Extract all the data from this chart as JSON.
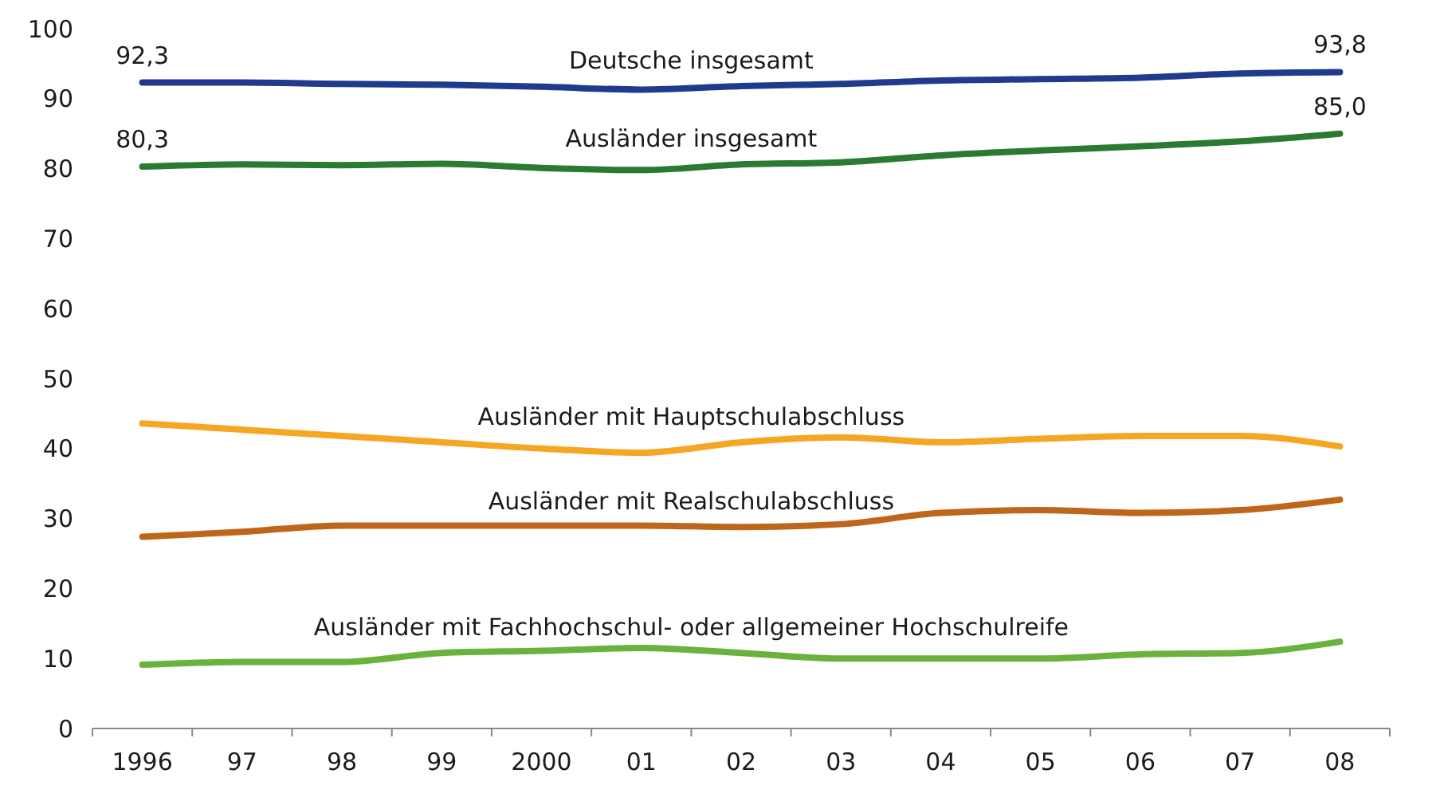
{
  "chart_data": {
    "type": "line",
    "categories": [
      "1996",
      "97",
      "98",
      "99",
      "2000",
      "01",
      "02",
      "03",
      "04",
      "05",
      "06",
      "07",
      "08"
    ],
    "series": [
      {
        "name": "Deutsche insgesamt",
        "color": "#1f3a8f",
        "values": [
          92.3,
          92.3,
          92.1,
          92.0,
          91.7,
          91.3,
          91.8,
          92.1,
          92.6,
          92.8,
          93.0,
          93.6,
          93.8
        ],
        "value_labels": [
          "92,3",
          null,
          null,
          null,
          null,
          null,
          null,
          null,
          null,
          null,
          null,
          null,
          "93,8"
        ]
      },
      {
        "name": "Ausländer insgesamt",
        "color": "#2a7a32",
        "values": [
          80.3,
          80.6,
          80.5,
          80.7,
          80.1,
          79.8,
          80.6,
          80.9,
          81.9,
          82.6,
          83.2,
          83.9,
          85.0
        ],
        "value_labels": [
          "80,3",
          null,
          null,
          null,
          null,
          null,
          null,
          null,
          null,
          null,
          null,
          null,
          "85,0"
        ]
      },
      {
        "name": "Ausländer mit Hauptschulabschluss",
        "color": "#f5a623",
        "values": [
          43.6,
          42.7,
          41.8,
          40.9,
          40.0,
          39.4,
          40.9,
          41.6,
          40.9,
          41.4,
          41.8,
          41.8,
          40.3
        ]
      },
      {
        "name": "Ausländer mit Realschulabschluss",
        "color": "#c0661b",
        "values": [
          27.4,
          28.1,
          29.0,
          29.0,
          29.0,
          29.0,
          28.8,
          29.2,
          30.8,
          31.2,
          30.8,
          31.2,
          32.7
        ]
      },
      {
        "name": "Ausländer mit Fachhochschul- oder allgemeiner Hochschulreife",
        "color": "#6ab23c",
        "values": [
          9.1,
          9.5,
          9.5,
          10.8,
          11.1,
          11.5,
          10.8,
          10.0,
          10.0,
          10.0,
          10.6,
          10.8,
          12.4
        ]
      }
    ],
    "ylim": [
      0,
      100
    ],
    "yticks": [
      0,
      10,
      20,
      30,
      40,
      50,
      60,
      70,
      80,
      90,
      100
    ],
    "grid": false,
    "line_style": "solid",
    "marker": "none"
  }
}
